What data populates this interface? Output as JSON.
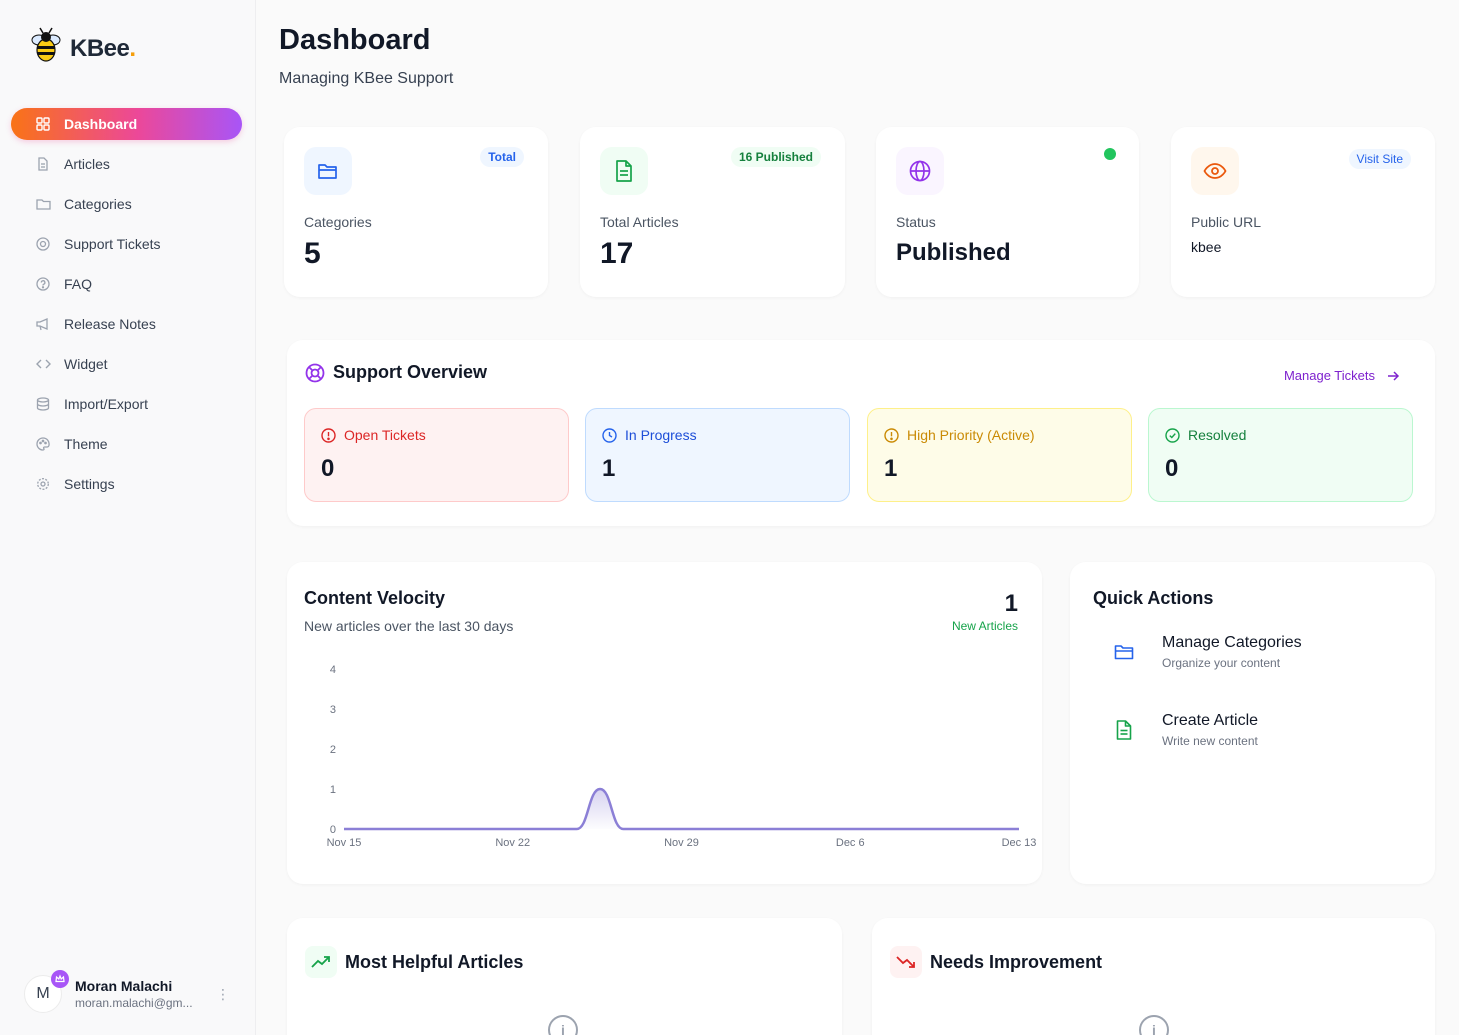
{
  "app": {
    "logo_text": "KBee",
    "logo_dot": "."
  },
  "sidebar": {
    "items": [
      {
        "label": "Dashboard",
        "icon": "grid-icon",
        "active": true
      },
      {
        "label": "Articles",
        "icon": "document-icon"
      },
      {
        "label": "Categories",
        "icon": "folder-icon"
      },
      {
        "label": "Support Tickets",
        "icon": "lifebuoy-icon"
      },
      {
        "label": "FAQ",
        "icon": "question-circle-icon"
      },
      {
        "label": "Release Notes",
        "icon": "megaphone-icon"
      },
      {
        "label": "Widget",
        "icon": "code-icon"
      },
      {
        "label": "Import/Export",
        "icon": "database-icon"
      },
      {
        "label": "Theme",
        "icon": "palette-icon"
      },
      {
        "label": "Settings",
        "icon": "gear-icon"
      }
    ],
    "user": {
      "initial": "M",
      "name": "Moran Malachi",
      "email": "moran.malachi@gm..."
    }
  },
  "header": {
    "title": "Dashboard",
    "subtitle": "Managing KBee Support"
  },
  "stats": {
    "categories": {
      "label": "Categories",
      "value": "5",
      "badge": "Total"
    },
    "articles": {
      "label": "Total Articles",
      "value": "17",
      "badge": "16 Published"
    },
    "status": {
      "label": "Status",
      "value": "Published"
    },
    "public_url": {
      "label": "Public URL",
      "value": "kbee",
      "badge": "Visit Site"
    }
  },
  "support": {
    "title": "Support Overview",
    "manage_link": "Manage Tickets",
    "tickets": {
      "open": {
        "label": "Open Tickets",
        "value": "0"
      },
      "progress": {
        "label": "In Progress",
        "value": "1"
      },
      "high": {
        "label": "High Priority (Active)",
        "value": "1"
      },
      "resolved": {
        "label": "Resolved",
        "value": "0"
      }
    }
  },
  "velocity": {
    "title": "Content Velocity",
    "subtitle": "New articles over the last 30 days",
    "count": "1",
    "count_label": "New Articles"
  },
  "chart_data": {
    "type": "area",
    "title": "Content Velocity",
    "x_ticks": [
      "Nov 15",
      "Nov 22",
      "Nov 29",
      "Dec 6",
      "Dec 13"
    ],
    "y_ticks": [
      "0",
      "1",
      "2",
      "3",
      "4"
    ],
    "ylim": [
      0,
      4
    ],
    "x_count": 30,
    "values": [
      0,
      0,
      0,
      0,
      0,
      0,
      0,
      0,
      0,
      0,
      0,
      1,
      0,
      0,
      0,
      0,
      0,
      0,
      0,
      0,
      0,
      0,
      0,
      0,
      0,
      0,
      0,
      0,
      0,
      0
    ],
    "color": "#8b7fd6"
  },
  "quick_actions": {
    "title": "Quick Actions",
    "items": [
      {
        "name": "Manage Categories",
        "desc": "Organize your content",
        "icon": "folder-icon"
      },
      {
        "name": "Create Article",
        "desc": "Write new content",
        "icon": "document-icon"
      }
    ]
  },
  "helpful": {
    "title": "Most Helpful Articles"
  },
  "needs": {
    "title": "Needs Improvement"
  }
}
